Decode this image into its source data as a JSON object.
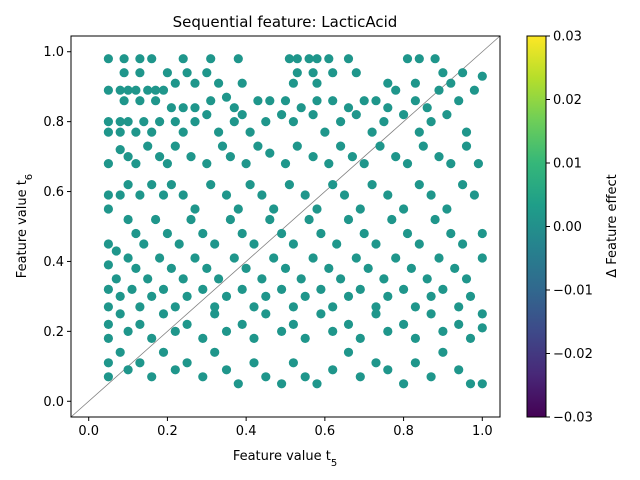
{
  "chart_data": {
    "type": "scatter",
    "title": "Sequential feature: LacticAcid",
    "xlabel": "Feature value t",
    "xlabel_sub": "5",
    "ylabel": "Feature value t",
    "ylabel_sub": "6",
    "xlim": [
      -0.045,
      1.045
    ],
    "ylim": [
      -0.045,
      1.045
    ],
    "x_ticks": [
      "0.0",
      "0.2",
      "0.4",
      "0.6",
      "0.8",
      "1.0"
    ],
    "y_ticks": [
      "0.0",
      "0.2",
      "0.4",
      "0.6",
      "0.8",
      "1.0"
    ],
    "diagonal_reference_line": true,
    "grid": false,
    "point_color": "#1f968b",
    "colorbar": {
      "label": "Δ Feature effect",
      "range": [
        -0.03,
        0.03
      ],
      "ticks": [
        "0.03",
        "0.02",
        "0.01",
        "0.00",
        "−0.01",
        "−0.02",
        "−0.03"
      ],
      "colormap": "viridis",
      "stops": [
        "#440154",
        "#482878",
        "#3e4989",
        "#31688e",
        "#26828e",
        "#1f9e89",
        "#35b779",
        "#6ece58",
        "#b5de2b",
        "#fde725"
      ]
    },
    "points": [
      [
        0.05,
        0.98
      ],
      [
        0.09,
        0.94
      ],
      [
        0.09,
        0.98
      ],
      [
        0.13,
        0.94
      ],
      [
        0.13,
        0.98
      ],
      [
        0.16,
        0.98
      ],
      [
        0.2,
        0.94
      ],
      [
        0.22,
        0.91
      ],
      [
        0.24,
        0.98
      ],
      [
        0.25,
        0.94
      ],
      [
        0.27,
        0.91
      ],
      [
        0.3,
        0.94
      ],
      [
        0.31,
        0.98
      ],
      [
        0.38,
        0.98
      ],
      [
        0.33,
        0.91
      ],
      [
        0.39,
        0.91
      ],
      [
        0.51,
        0.98
      ],
      [
        0.53,
        0.98
      ],
      [
        0.56,
        0.98
      ],
      [
        0.58,
        0.98
      ],
      [
        0.61,
        0.98
      ],
      [
        0.53,
        0.94
      ],
      [
        0.57,
        0.94
      ],
      [
        0.62,
        0.94
      ],
      [
        0.52,
        0.91
      ],
      [
        0.58,
        0.91
      ],
      [
        0.66,
        0.98
      ],
      [
        0.68,
        0.94
      ],
      [
        0.81,
        0.98
      ],
      [
        0.84,
        0.98
      ],
      [
        0.88,
        0.98
      ],
      [
        0.9,
        0.94
      ],
      [
        0.95,
        0.94
      ],
      [
        1.0,
        0.93
      ],
      [
        0.76,
        0.91
      ],
      [
        0.83,
        0.91
      ],
      [
        0.92,
        0.91
      ],
      [
        0.05,
        0.89
      ],
      [
        0.08,
        0.89
      ],
      [
        0.1,
        0.89
      ],
      [
        0.12,
        0.89
      ],
      [
        0.15,
        0.89
      ],
      [
        0.17,
        0.89
      ],
      [
        0.19,
        0.89
      ],
      [
        0.09,
        0.86
      ],
      [
        0.13,
        0.86
      ],
      [
        0.17,
        0.86
      ],
      [
        0.21,
        0.84
      ],
      [
        0.24,
        0.84
      ],
      [
        0.27,
        0.84
      ],
      [
        0.31,
        0.86
      ],
      [
        0.35,
        0.87
      ],
      [
        0.37,
        0.84
      ],
      [
        0.43,
        0.86
      ],
      [
        0.46,
        0.86
      ],
      [
        0.5,
        0.86
      ],
      [
        0.54,
        0.84
      ],
      [
        0.58,
        0.86
      ],
      [
        0.62,
        0.86
      ],
      [
        0.66,
        0.84
      ],
      [
        0.7,
        0.86
      ],
      [
        0.73,
        0.86
      ],
      [
        0.76,
        0.84
      ],
      [
        0.78,
        0.89
      ],
      [
        0.83,
        0.86
      ],
      [
        0.86,
        0.84
      ],
      [
        0.89,
        0.89
      ],
      [
        0.94,
        0.86
      ],
      [
        0.98,
        0.89
      ],
      [
        0.05,
        0.8
      ],
      [
        0.05,
        0.77
      ],
      [
        0.08,
        0.8
      ],
      [
        0.08,
        0.77
      ],
      [
        0.1,
        0.8
      ],
      [
        0.12,
        0.77
      ],
      [
        0.14,
        0.8
      ],
      [
        0.18,
        0.8
      ],
      [
        0.16,
        0.77
      ],
      [
        0.22,
        0.8
      ],
      [
        0.24,
        0.77
      ],
      [
        0.27,
        0.8
      ],
      [
        0.3,
        0.82
      ],
      [
        0.33,
        0.77
      ],
      [
        0.37,
        0.8
      ],
      [
        0.39,
        0.82
      ],
      [
        0.41,
        0.77
      ],
      [
        0.45,
        0.8
      ],
      [
        0.49,
        0.82
      ],
      [
        0.52,
        0.8
      ],
      [
        0.57,
        0.82
      ],
      [
        0.6,
        0.77
      ],
      [
        0.64,
        0.8
      ],
      [
        0.68,
        0.82
      ],
      [
        0.72,
        0.77
      ],
      [
        0.75,
        0.8
      ],
      [
        0.8,
        0.82
      ],
      [
        0.84,
        0.77
      ],
      [
        0.87,
        0.8
      ],
      [
        0.91,
        0.82
      ],
      [
        0.96,
        0.77
      ],
      [
        0.05,
        0.68
      ],
      [
        0.08,
        0.72
      ],
      [
        0.1,
        0.7
      ],
      [
        0.12,
        0.68
      ],
      [
        0.15,
        0.73
      ],
      [
        0.18,
        0.7
      ],
      [
        0.2,
        0.68
      ],
      [
        0.22,
        0.73
      ],
      [
        0.26,
        0.7
      ],
      [
        0.3,
        0.68
      ],
      [
        0.34,
        0.73
      ],
      [
        0.36,
        0.7
      ],
      [
        0.4,
        0.68
      ],
      [
        0.43,
        0.73
      ],
      [
        0.46,
        0.71
      ],
      [
        0.5,
        0.68
      ],
      [
        0.53,
        0.73
      ],
      [
        0.57,
        0.7
      ],
      [
        0.61,
        0.68
      ],
      [
        0.64,
        0.73
      ],
      [
        0.67,
        0.7
      ],
      [
        0.7,
        0.68
      ],
      [
        0.74,
        0.73
      ],
      [
        0.78,
        0.7
      ],
      [
        0.81,
        0.68
      ],
      [
        0.85,
        0.73
      ],
      [
        0.89,
        0.7
      ],
      [
        0.92,
        0.68
      ],
      [
        0.96,
        0.73
      ],
      [
        0.99,
        0.68
      ],
      [
        0.05,
        0.59
      ],
      [
        0.05,
        0.55
      ],
      [
        0.08,
        0.59
      ],
      [
        0.1,
        0.62
      ],
      [
        0.13,
        0.59
      ],
      [
        0.16,
        0.62
      ],
      [
        0.19,
        0.59
      ],
      [
        0.21,
        0.62
      ],
      [
        0.24,
        0.59
      ],
      [
        0.27,
        0.55
      ],
      [
        0.31,
        0.62
      ],
      [
        0.35,
        0.59
      ],
      [
        0.38,
        0.55
      ],
      [
        0.41,
        0.62
      ],
      [
        0.44,
        0.59
      ],
      [
        0.47,
        0.55
      ],
      [
        0.51,
        0.62
      ],
      [
        0.55,
        0.59
      ],
      [
        0.58,
        0.55
      ],
      [
        0.62,
        0.62
      ],
      [
        0.65,
        0.59
      ],
      [
        0.69,
        0.55
      ],
      [
        0.72,
        0.62
      ],
      [
        0.76,
        0.59
      ],
      [
        0.8,
        0.55
      ],
      [
        0.84,
        0.62
      ],
      [
        0.87,
        0.59
      ],
      [
        0.91,
        0.55
      ],
      [
        0.95,
        0.62
      ],
      [
        0.98,
        0.59
      ],
      [
        0.05,
        0.45
      ],
      [
        0.07,
        0.43
      ],
      [
        0.1,
        0.52
      ],
      [
        0.12,
        0.48
      ],
      [
        0.14,
        0.45
      ],
      [
        0.17,
        0.52
      ],
      [
        0.2,
        0.48
      ],
      [
        0.23,
        0.45
      ],
      [
        0.26,
        0.52
      ],
      [
        0.29,
        0.48
      ],
      [
        0.32,
        0.45
      ],
      [
        0.36,
        0.52
      ],
      [
        0.39,
        0.48
      ],
      [
        0.42,
        0.45
      ],
      [
        0.46,
        0.52
      ],
      [
        0.49,
        0.48
      ],
      [
        0.52,
        0.45
      ],
      [
        0.56,
        0.52
      ],
      [
        0.59,
        0.48
      ],
      [
        0.63,
        0.45
      ],
      [
        0.66,
        0.52
      ],
      [
        0.7,
        0.48
      ],
      [
        0.73,
        0.45
      ],
      [
        0.77,
        0.52
      ],
      [
        0.81,
        0.48
      ],
      [
        0.84,
        0.45
      ],
      [
        0.88,
        0.52
      ],
      [
        0.92,
        0.48
      ],
      [
        0.95,
        0.45
      ],
      [
        1.0,
        0.48
      ],
      [
        0.05,
        0.39
      ],
      [
        0.07,
        0.35
      ],
      [
        0.1,
        0.41
      ],
      [
        0.12,
        0.38
      ],
      [
        0.15,
        0.35
      ],
      [
        0.18,
        0.41
      ],
      [
        0.21,
        0.38
      ],
      [
        0.24,
        0.35
      ],
      [
        0.27,
        0.41
      ],
      [
        0.3,
        0.38
      ],
      [
        0.33,
        0.35
      ],
      [
        0.37,
        0.41
      ],
      [
        0.4,
        0.38
      ],
      [
        0.44,
        0.35
      ],
      [
        0.47,
        0.41
      ],
      [
        0.5,
        0.38
      ],
      [
        0.54,
        0.35
      ],
      [
        0.57,
        0.41
      ],
      [
        0.61,
        0.38
      ],
      [
        0.64,
        0.35
      ],
      [
        0.68,
        0.41
      ],
      [
        0.71,
        0.38
      ],
      [
        0.75,
        0.35
      ],
      [
        0.78,
        0.41
      ],
      [
        0.82,
        0.38
      ],
      [
        0.86,
        0.35
      ],
      [
        0.89,
        0.41
      ],
      [
        0.93,
        0.38
      ],
      [
        0.96,
        0.35
      ],
      [
        1.0,
        0.41
      ],
      [
        0.05,
        0.32
      ],
      [
        0.05,
        0.27
      ],
      [
        0.08,
        0.3
      ],
      [
        0.11,
        0.32
      ],
      [
        0.13,
        0.27
      ],
      [
        0.16,
        0.3
      ],
      [
        0.19,
        0.32
      ],
      [
        0.22,
        0.27
      ],
      [
        0.25,
        0.3
      ],
      [
        0.29,
        0.32
      ],
      [
        0.32,
        0.27
      ],
      [
        0.35,
        0.3
      ],
      [
        0.39,
        0.32
      ],
      [
        0.42,
        0.27
      ],
      [
        0.45,
        0.3
      ],
      [
        0.49,
        0.32
      ],
      [
        0.52,
        0.27
      ],
      [
        0.55,
        0.3
      ],
      [
        0.59,
        0.32
      ],
      [
        0.62,
        0.27
      ],
      [
        0.66,
        0.3
      ],
      [
        0.69,
        0.32
      ],
      [
        0.73,
        0.27
      ],
      [
        0.76,
        0.3
      ],
      [
        0.8,
        0.32
      ],
      [
        0.83,
        0.27
      ],
      [
        0.87,
        0.3
      ],
      [
        0.9,
        0.32
      ],
      [
        0.94,
        0.27
      ],
      [
        0.97,
        0.3
      ],
      [
        1.0,
        0.25
      ],
      [
        0.05,
        0.22
      ],
      [
        0.05,
        0.18
      ],
      [
        0.08,
        0.25
      ],
      [
        0.1,
        0.2
      ],
      [
        0.13,
        0.22
      ],
      [
        0.16,
        0.18
      ],
      [
        0.19,
        0.25
      ],
      [
        0.22,
        0.2
      ],
      [
        0.25,
        0.22
      ],
      [
        0.29,
        0.18
      ],
      [
        0.32,
        0.25
      ],
      [
        0.35,
        0.2
      ],
      [
        0.39,
        0.22
      ],
      [
        0.42,
        0.18
      ],
      [
        0.45,
        0.25
      ],
      [
        0.49,
        0.2
      ],
      [
        0.52,
        0.22
      ],
      [
        0.55,
        0.18
      ],
      [
        0.59,
        0.25
      ],
      [
        0.62,
        0.2
      ],
      [
        0.66,
        0.22
      ],
      [
        0.69,
        0.18
      ],
      [
        0.73,
        0.25
      ],
      [
        0.76,
        0.2
      ],
      [
        0.8,
        0.22
      ],
      [
        0.83,
        0.18
      ],
      [
        0.87,
        0.25
      ],
      [
        0.9,
        0.2
      ],
      [
        0.94,
        0.22
      ],
      [
        0.97,
        0.18
      ],
      [
        1.0,
        0.21
      ],
      [
        0.05,
        0.11
      ],
      [
        0.05,
        0.07
      ],
      [
        0.08,
        0.14
      ],
      [
        0.1,
        0.09
      ],
      [
        0.13,
        0.11
      ],
      [
        0.16,
        0.07
      ],
      [
        0.19,
        0.14
      ],
      [
        0.22,
        0.09
      ],
      [
        0.25,
        0.11
      ],
      [
        0.29,
        0.07
      ],
      [
        0.32,
        0.14
      ],
      [
        0.35,
        0.09
      ],
      [
        0.38,
        0.05
      ],
      [
        0.42,
        0.11
      ],
      [
        0.45,
        0.07
      ],
      [
        0.49,
        0.05
      ],
      [
        0.52,
        0.11
      ],
      [
        0.55,
        0.07
      ],
      [
        0.58,
        0.05
      ],
      [
        0.62,
        0.09
      ],
      [
        0.66,
        0.14
      ],
      [
        0.69,
        0.07
      ],
      [
        0.73,
        0.11
      ],
      [
        0.76,
        0.09
      ],
      [
        0.8,
        0.05
      ],
      [
        0.83,
        0.11
      ],
      [
        0.87,
        0.07
      ],
      [
        0.9,
        0.14
      ],
      [
        0.94,
        0.09
      ],
      [
        0.97,
        0.05
      ],
      [
        1.0,
        0.05
      ]
    ]
  }
}
